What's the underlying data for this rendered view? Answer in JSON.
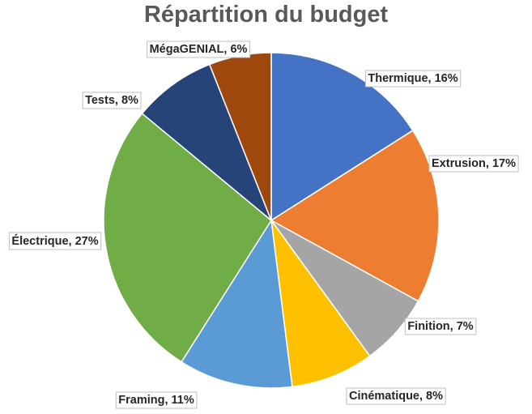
{
  "chart_data": {
    "type": "pie",
    "title": "Répartition du budget",
    "start_angle_deg": 0,
    "direction": "clockwise",
    "slices": [
      {
        "label": "Thermique",
        "value": 16,
        "display": "Thermique, 16%",
        "color": "#4472C4"
      },
      {
        "label": "Extrusion",
        "value": 17,
        "display": "Extrusion, 17%",
        "color": "#ED7D31"
      },
      {
        "label": "Finition",
        "value": 7,
        "display": "Finition, 7%",
        "color": "#A5A5A5"
      },
      {
        "label": "Cinématique",
        "value": 8,
        "display": "Cinématique, 8%",
        "color": "#FFC000"
      },
      {
        "label": "Framing",
        "value": 11,
        "display": "Framing, 11%",
        "color": "#5B9BD5"
      },
      {
        "label": "Électrique",
        "value": 27,
        "display": "Électrique, 27%",
        "color": "#70AD47"
      },
      {
        "label": "Tests",
        "value": 8,
        "display": "Tests, 8%",
        "color": "#264478"
      },
      {
        "label": "MégaGENIAL",
        "value": 6,
        "display": "MégaGENIAL, 6%",
        "color": "#9E480E"
      }
    ]
  }
}
